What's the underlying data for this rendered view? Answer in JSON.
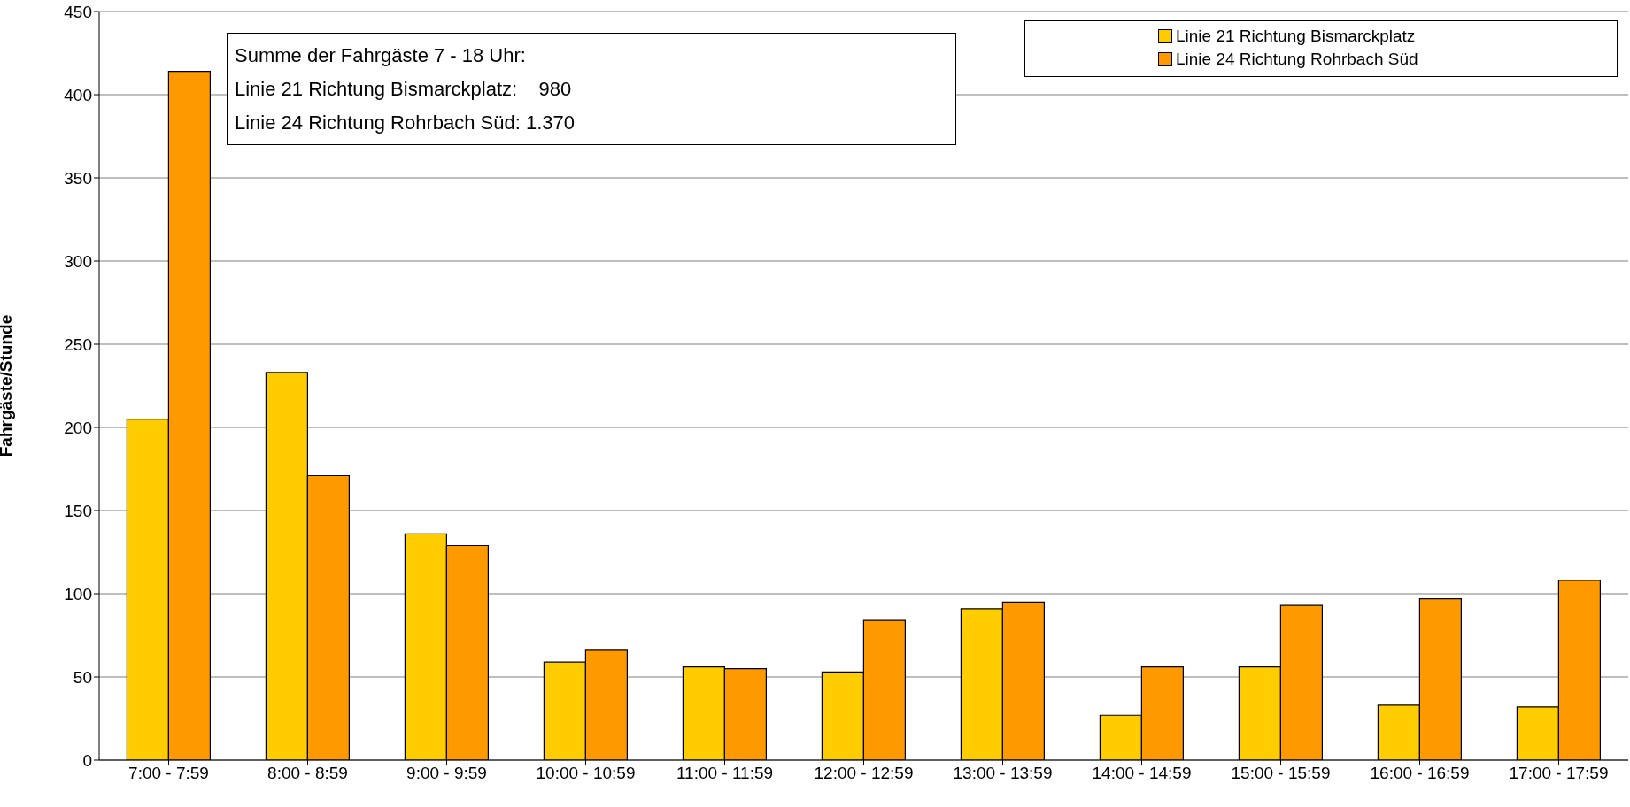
{
  "chart_data": {
    "type": "bar",
    "ylabel": "Fahrgäste/Stunde",
    "categories": [
      "7:00 - 7:59",
      "8:00 - 8:59",
      "9:00 - 9:59",
      "10:00 - 10:59",
      "11:00 - 11:59",
      "12:00 - 12:59",
      "13:00 - 13:59",
      "14:00 - 14:59",
      "15:00 - 15:59",
      "16:00 - 16:59",
      "17:00 - 17:59"
    ],
    "series": [
      {
        "name": "Linie 21 Richtung Bismarckplatz",
        "color": "#ffcc00",
        "values": [
          205,
          233,
          136,
          59,
          56,
          53,
          91,
          27,
          56,
          33,
          32
        ]
      },
      {
        "name": "Linie 24 Richtung Rohrbach Süd",
        "color": "#ff9900",
        "values": [
          414,
          171,
          129,
          66,
          55,
          84,
          95,
          56,
          93,
          97,
          108
        ]
      }
    ],
    "ylim": [
      0,
      450
    ],
    "yticks": [
      0,
      50,
      100,
      150,
      200,
      250,
      300,
      350,
      400,
      450
    ],
    "grid": "y",
    "legend": "top right",
    "annotations": [
      "Summe der Fahrgäste 7 - 18 Uhr:",
      "Linie 21 Richtung Bismarckplatz:    980",
      "Linie 24 Richtung Rohrbach Süd: 1.370"
    ]
  }
}
